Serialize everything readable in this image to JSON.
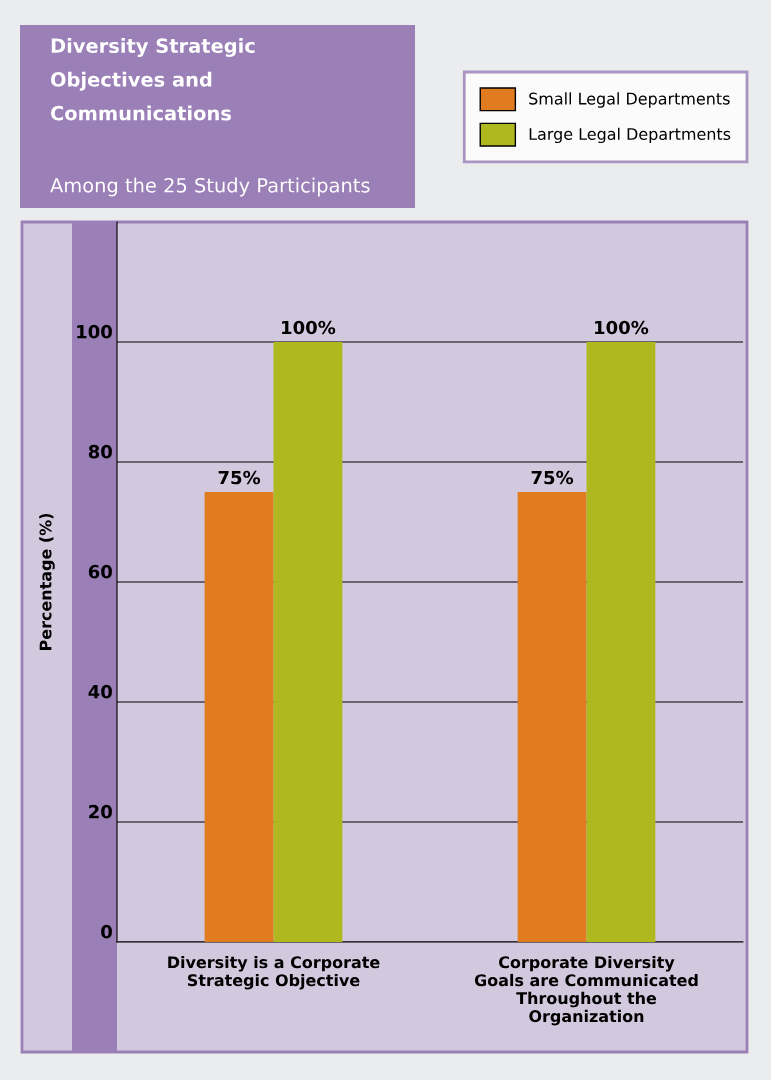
{
  "chart_data": {
    "type": "bar",
    "title": "Diversity Strategic Objectives and Communications",
    "subtitle": "Among the 25 Study Participants",
    "ylabel": "Percentage (%)",
    "categories": [
      "Diversity is a Corporate Strategic Objective",
      "Corporate Diversity Goals are Communicated Throughout the Organization"
    ],
    "series": [
      {
        "name": "Small Legal Departments",
        "color": "#e07b1f",
        "values": [
          75,
          75
        ],
        "value_labels": [
          "75%",
          "75%"
        ]
      },
      {
        "name": "Large Legal Departments",
        "color": "#afb91f",
        "values": [
          100,
          100
        ],
        "value_labels": [
          "100%",
          "100%"
        ]
      }
    ],
    "ylim": [
      0,
      120
    ],
    "yticks": [
      0,
      20,
      40,
      60,
      80,
      100
    ],
    "grid": "y",
    "legend": "top right"
  }
}
